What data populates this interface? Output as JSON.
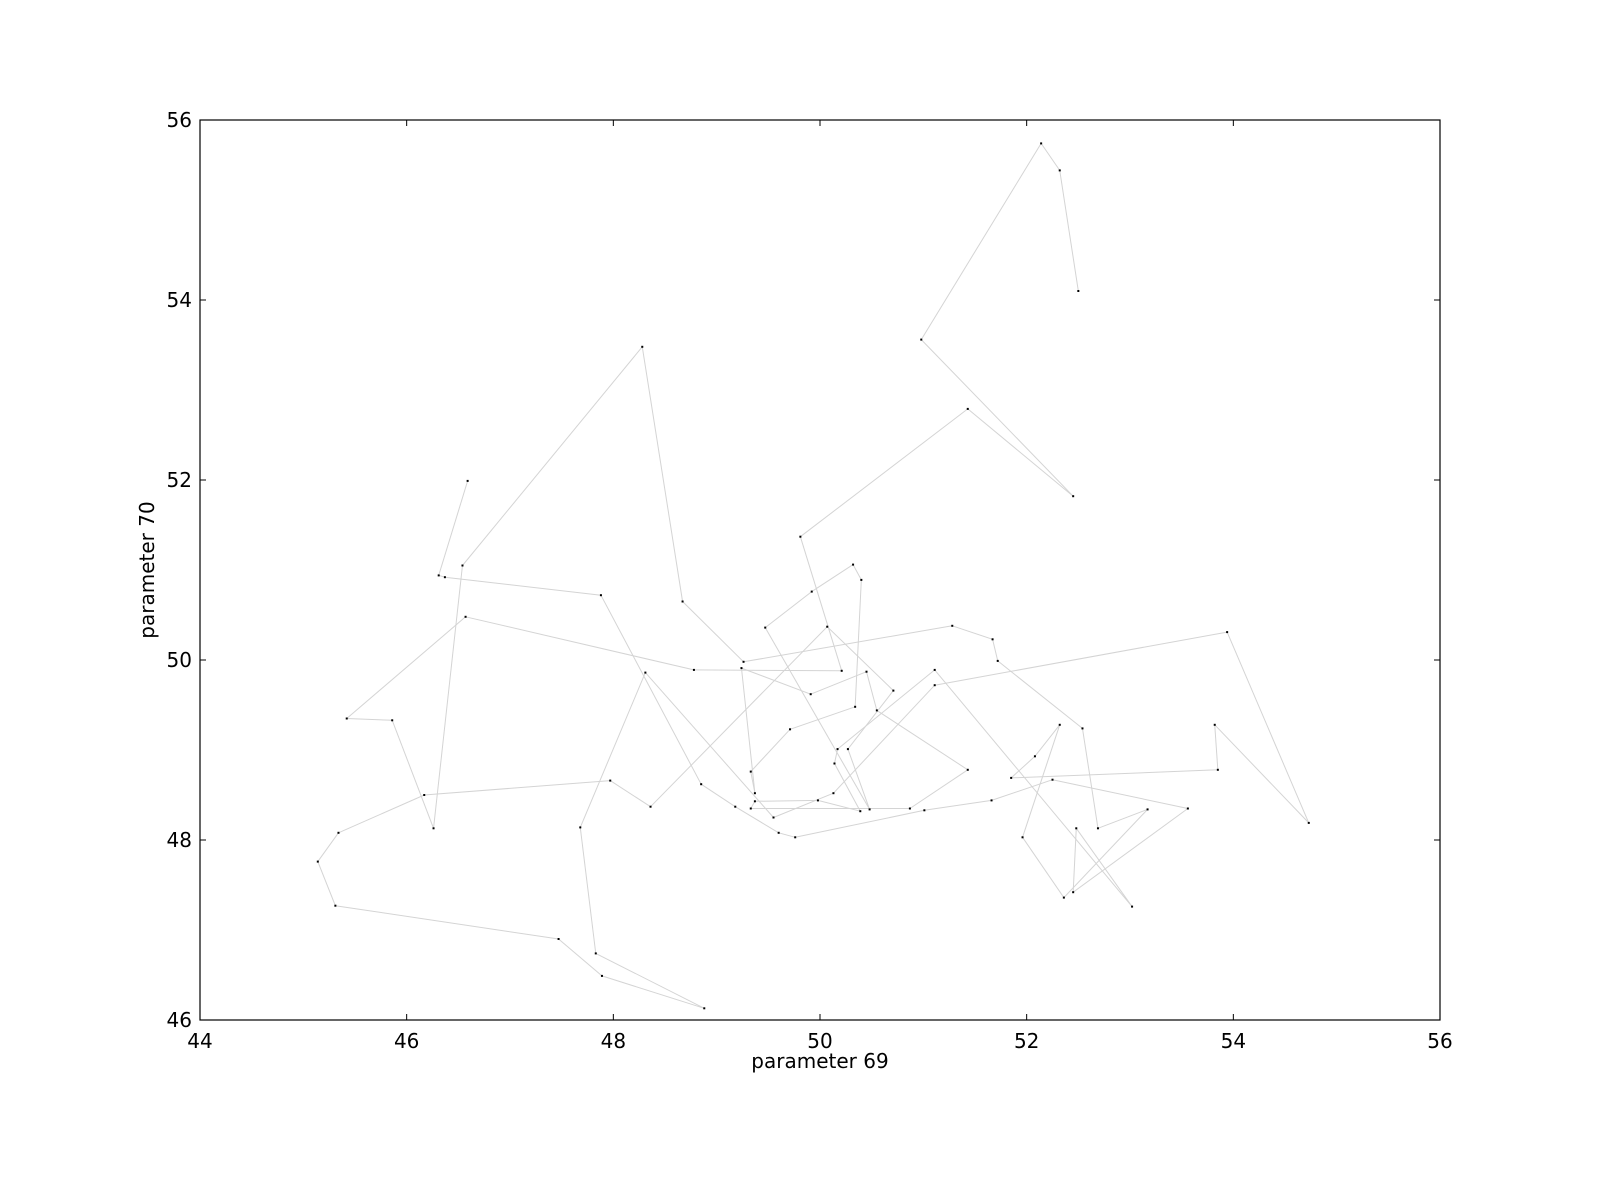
{
  "chart_data": {
    "type": "line",
    "title": "",
    "xlabel": "parameter 69",
    "ylabel": "parameter 70",
    "xlim": [
      44,
      56
    ],
    "ylim": [
      46,
      56
    ],
    "xticks": [
      "44",
      "46",
      "48",
      "50",
      "52",
      "54",
      "56"
    ],
    "yticks": [
      "46",
      "48",
      "50",
      "52",
      "54",
      "56"
    ],
    "grid": false,
    "legend": "none",
    "line_color": "#d4d4d4",
    "marker_color": "#000000",
    "series": [
      {
        "x": [
          52.5,
          52.32,
          52.14,
          50.98,
          52.45,
          51.43,
          49.81,
          50.21,
          48.78,
          46.57,
          45.42,
          45.86,
          46.26,
          46.54,
          48.28,
          48.67,
          49.26,
          51.28,
          51.67,
          51.72,
          52.54,
          52.69,
          53.17,
          52.36,
          51.96,
          52.32,
          52.08,
          51.85,
          53.85,
          53.82,
          54.73,
          53.94,
          51.11,
          50.13,
          49.55,
          48.31,
          47.68,
          47.83,
          48.88,
          47.89,
          47.47,
          45.31,
          45.14,
          45.34,
          46.17,
          47.97,
          48.36,
          50.07,
          50.71,
          50.27,
          50.48,
          49.47,
          49.92,
          50.32,
          50.4,
          50.34,
          49.71,
          49.33,
          49.37,
          49.24,
          49.91,
          50.45,
          50.55,
          51.43,
          50.87,
          49.33,
          49.37,
          49.98,
          50.39,
          50.14,
          50.17,
          51.11,
          53.02,
          52.48,
          52.45,
          53.56,
          52.25,
          51.66,
          51.01,
          49.76,
          49.6,
          49.18,
          48.85,
          47.88,
          46.37,
          46.31,
          46.59
        ]
      },
      {
        "y": [
          54.1,
          55.44,
          55.74,
          53.56,
          51.82,
          52.79,
          51.37,
          49.88,
          49.89,
          50.48,
          49.35,
          49.33,
          48.13,
          51.05,
          53.48,
          50.65,
          49.98,
          50.38,
          50.23,
          49.99,
          49.24,
          48.13,
          48.34,
          47.36,
          48.03,
          49.28,
          48.93,
          48.69,
          48.78,
          49.28,
          48.19,
          50.31,
          49.72,
          48.52,
          48.25,
          49.86,
          48.14,
          46.74,
          46.13,
          46.49,
          46.9,
          47.27,
          47.76,
          48.08,
          48.5,
          48.66,
          48.37,
          50.37,
          49.66,
          49.01,
          48.34,
          50.36,
          50.76,
          51.06,
          50.89,
          49.48,
          49.23,
          48.76,
          48.52,
          49.91,
          49.62,
          49.87,
          49.44,
          48.78,
          48.35,
          48.35,
          48.43,
          48.44,
          48.32,
          48.85,
          49.01,
          49.89,
          47.26,
          48.13,
          47.42,
          48.35,
          48.67,
          48.44,
          48.33,
          48.03,
          48.08,
          48.37,
          48.62,
          50.72,
          50.92,
          50.94,
          51.99
        ]
      }
    ]
  }
}
